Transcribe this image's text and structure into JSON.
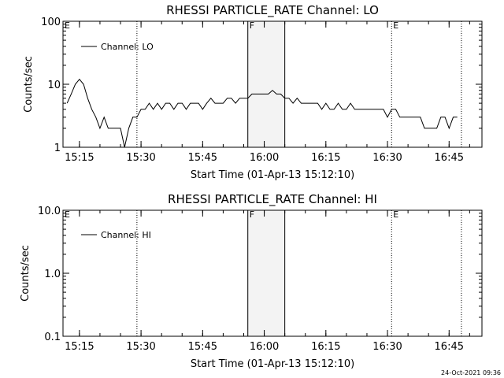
{
  "footer": {
    "timestamp": "24-Oct-2021 09:36"
  },
  "chart_data": [
    {
      "type": "line",
      "title": "RHESSI PARTICLE_RATE Channel: LO",
      "xlabel": "Start Time (01-Apr-13 15:12:10)",
      "ylabel": "Counts/sec",
      "yscale": "log",
      "ylim": [
        1,
        100
      ],
      "xlim": [
        "15:11",
        "16:53"
      ],
      "x_ticks": [
        "15:15",
        "15:30",
        "15:45",
        "16:00",
        "16:15",
        "16:30",
        "16:45"
      ],
      "y_ticks": [
        "1",
        "10",
        "100"
      ],
      "legend": {
        "label": "Channel: LO",
        "position": "top-left"
      },
      "markers": [
        {
          "label": "E",
          "time": "15:11",
          "style": "none"
        },
        {
          "label": "",
          "time": "15:29",
          "style": "dotted"
        },
        {
          "label": "F",
          "time": "15:56",
          "style": "solid"
        },
        {
          "label": "",
          "time": "16:05",
          "style": "solid"
        },
        {
          "label": "E",
          "time": "16:31",
          "style": "dotted"
        },
        {
          "label": "",
          "time": "16:48",
          "style": "dotted"
        }
      ],
      "shaded_span": [
        "15:56",
        "16:05"
      ],
      "series": [
        {
          "name": "Channel: LO",
          "x": [
            "15:12",
            "15:13",
            "15:14",
            "15:15",
            "15:16",
            "15:17",
            "15:18",
            "15:19",
            "15:20",
            "15:21",
            "15:22",
            "15:23",
            "15:24",
            "15:25",
            "15:26",
            "15:27",
            "15:28",
            "15:29",
            "15:30",
            "15:31",
            "15:32",
            "15:33",
            "15:34",
            "15:35",
            "15:36",
            "15:37",
            "15:38",
            "15:39",
            "15:40",
            "15:41",
            "15:42",
            "15:43",
            "15:44",
            "15:45",
            "15:46",
            "15:47",
            "15:48",
            "15:49",
            "15:50",
            "15:51",
            "15:52",
            "15:53",
            "15:54",
            "15:55",
            "15:56",
            "15:57",
            "15:58",
            "15:59",
            "16:00",
            "16:01",
            "16:02",
            "16:03",
            "16:04",
            "16:05",
            "16:06",
            "16:07",
            "16:08",
            "16:09",
            "16:10",
            "16:11",
            "16:12",
            "16:13",
            "16:14",
            "16:15",
            "16:16",
            "16:17",
            "16:18",
            "16:19",
            "16:20",
            "16:21",
            "16:22",
            "16:23",
            "16:24",
            "16:25",
            "16:26",
            "16:27",
            "16:28",
            "16:29",
            "16:30",
            "16:31",
            "16:32",
            "16:33",
            "16:34",
            "16:35",
            "16:36",
            "16:37",
            "16:38",
            "16:39",
            "16:40",
            "16:41",
            "16:42",
            "16:43",
            "16:44",
            "16:45",
            "16:46",
            "16:47"
          ],
          "values": [
            5,
            7,
            10,
            12,
            10,
            6,
            4,
            3,
            2,
            3,
            2,
            2,
            2,
            2,
            1,
            2,
            3,
            3,
            4,
            4,
            5,
            4,
            5,
            4,
            5,
            5,
            4,
            5,
            5,
            4,
            5,
            5,
            5,
            4,
            5,
            6,
            5,
            5,
            5,
            6,
            6,
            5,
            6,
            6,
            6,
            7,
            7,
            7,
            7,
            7,
            8,
            7,
            7,
            6,
            6,
            5,
            6,
            5,
            5,
            5,
            5,
            5,
            4,
            5,
            4,
            4,
            5,
            4,
            4,
            5,
            4,
            4,
            4,
            4,
            4,
            4,
            4,
            4,
            3,
            4,
            4,
            3,
            3,
            3,
            3,
            3,
            3,
            2,
            2,
            2,
            2,
            3,
            3,
            2,
            3,
            3
          ]
        }
      ]
    },
    {
      "type": "line",
      "title": "RHESSI PARTICLE_RATE Channel: HI",
      "xlabel": "Start Time (01-Apr-13 15:12:10)",
      "ylabel": "Counts/sec",
      "yscale": "log",
      "ylim": [
        0.1,
        10
      ],
      "xlim": [
        "15:11",
        "16:53"
      ],
      "x_ticks": [
        "15:15",
        "15:30",
        "15:45",
        "16:00",
        "16:15",
        "16:30",
        "16:45"
      ],
      "y_ticks": [
        "0.1",
        "1.0",
        "10.0"
      ],
      "legend": {
        "label": "Channel: HI",
        "position": "top-left"
      },
      "markers": [
        {
          "label": "E",
          "time": "15:11",
          "style": "none"
        },
        {
          "label": "",
          "time": "15:29",
          "style": "dotted"
        },
        {
          "label": "F",
          "time": "15:56",
          "style": "solid"
        },
        {
          "label": "",
          "time": "16:05",
          "style": "solid"
        },
        {
          "label": "E",
          "time": "16:31",
          "style": "dotted"
        },
        {
          "label": "",
          "time": "16:48",
          "style": "dotted"
        }
      ],
      "shaded_span": [
        "15:56",
        "16:05"
      ],
      "series": [
        {
          "name": "Channel: HI",
          "x": [],
          "values": []
        }
      ]
    }
  ]
}
